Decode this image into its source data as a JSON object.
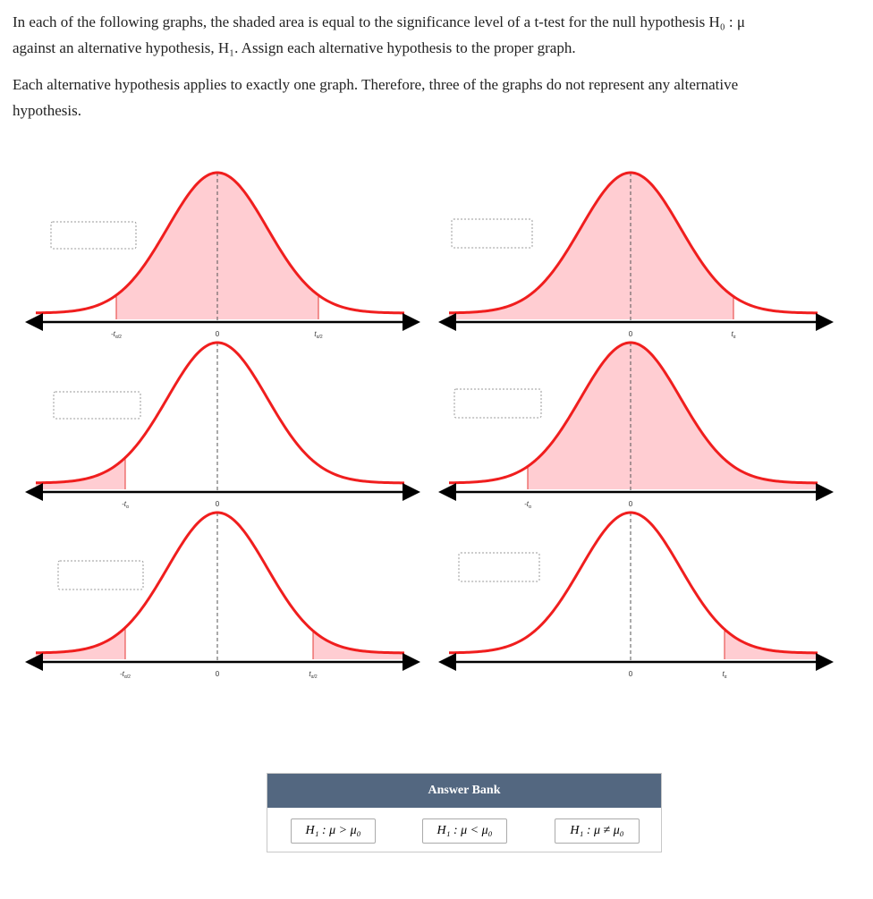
{
  "intro": {
    "lines": [
      "In each of the following graphs, the shaded area is equal to the significance level of a t-test for the null hypothesis H₀ : μ",
      "against an alternative hypothesis, H₁. Assign each alternative hypothesis to the proper graph."
    ]
  },
  "note": {
    "lines": [
      "Each alternative hypothesis applies to exactly one graph. Therefore, three of the graphs do not represent any alternative",
      "hypothesis."
    ]
  },
  "graphs": [
    {
      "labels": [
        {
          "t": "-t",
          "sub": "α/2"
        },
        {
          "t": "0"
        },
        {
          "t": "t",
          "sub": "α/2"
        }
      ]
    },
    {
      "labels": [
        {
          "t": "0"
        },
        {
          "t": "t",
          "sub": "α"
        }
      ]
    },
    {
      "labels": [
        {
          "t": "-t",
          "sub": "α"
        },
        {
          "t": "0"
        }
      ]
    },
    {
      "labels": [
        {
          "t": "-t",
          "sub": "α"
        },
        {
          "t": "0"
        }
      ]
    },
    {
      "labels": [
        {
          "t": "-t",
          "sub": "α/2"
        },
        {
          "t": "0"
        },
        {
          "t": "t",
          "sub": "α/2"
        }
      ]
    },
    {
      "labels": [
        {
          "t": "0"
        },
        {
          "t": "t",
          "sub": "α"
        }
      ]
    }
  ],
  "answer_bank": {
    "title": "Answer Bank",
    "options": [
      "H₁ : μ > μ₀",
      "H₁ : μ < μ₀",
      "H₁ : μ ≠ μ₀"
    ]
  }
}
